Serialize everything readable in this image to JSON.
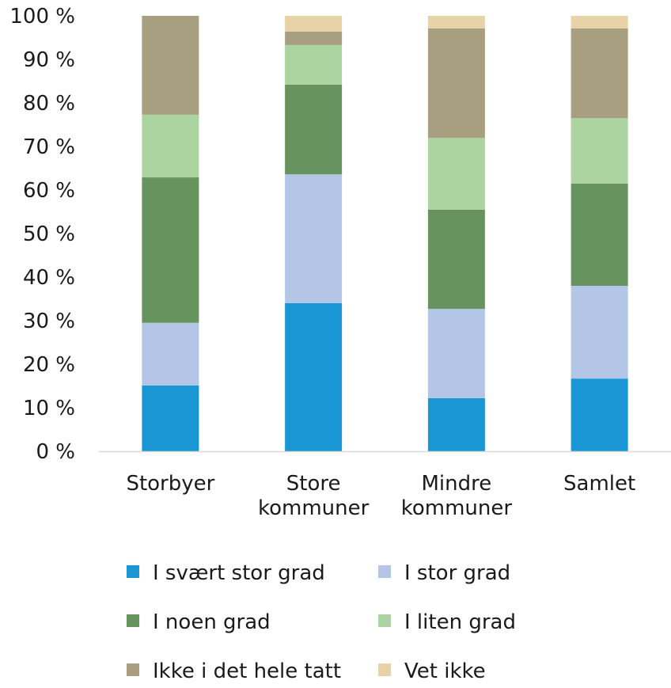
{
  "chart_data": {
    "type": "bar",
    "stacked": true,
    "title": "",
    "xlabel": "",
    "ylabel": "",
    "ylim": [
      0,
      100
    ],
    "y_ticks": [
      "0 %",
      "10 %",
      "20 %",
      "30 %",
      "40 %",
      "50 %",
      "60 %",
      "70 %",
      "80 %",
      "90 %",
      "100 %"
    ],
    "categories": [
      [
        "Storbyer"
      ],
      [
        "Store",
        "kommuner"
      ],
      [
        "Mindre",
        "kommuner"
      ],
      [
        "Samlet"
      ]
    ],
    "series": [
      {
        "name": "I svært stor grad",
        "color": "#1b96d4",
        "values": [
          15.1,
          34.0,
          12.2,
          16.7
        ]
      },
      {
        "name": "I stor grad",
        "color": "#b4c6e6",
        "values": [
          14.4,
          29.6,
          20.5,
          21.3
        ]
      },
      {
        "name": "I noen grad",
        "color": "#67935f",
        "values": [
          33.4,
          20.6,
          22.8,
          23.5
        ]
      },
      {
        "name": "I liten grad",
        "color": "#acd4a0",
        "values": [
          14.4,
          9.1,
          16.5,
          15.0
        ]
      },
      {
        "name": "Ikke i det hele tatt",
        "color": "#a89e80",
        "values": [
          22.7,
          3.1,
          25.1,
          20.6
        ]
      },
      {
        "name": "Vet ikke",
        "color": "#e8d3a9",
        "values": [
          0,
          3.6,
          2.9,
          2.9
        ]
      }
    ],
    "legend_position": "bottom",
    "grid": false
  }
}
